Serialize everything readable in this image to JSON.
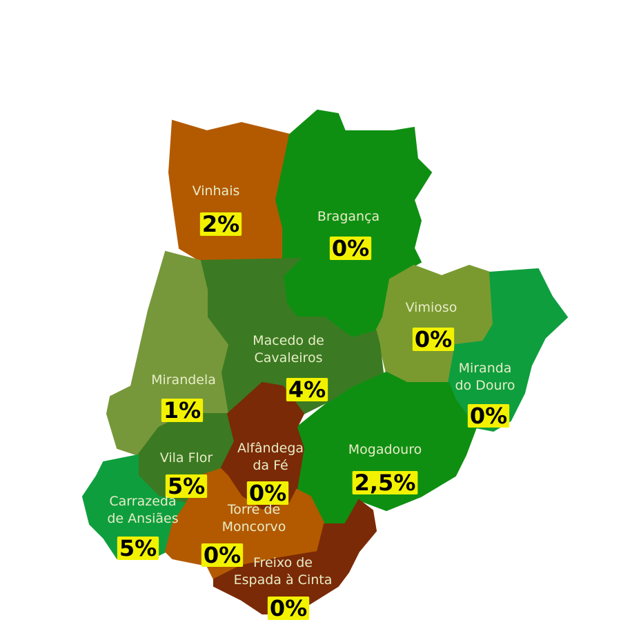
{
  "regions": [
    {
      "name": [
        "Vinhais"
      ],
      "value": "2%",
      "color": "#b35a00"
    },
    {
      "name": [
        "Bragança"
      ],
      "value": "0%",
      "color": "#0f8f12"
    },
    {
      "name": [
        "Vimioso"
      ],
      "value": "0%",
      "color": "#7a9a30"
    },
    {
      "name": [
        "Miranda",
        "do Douro"
      ],
      "value": "0%",
      "color": "#0e9e3e"
    },
    {
      "name": [
        "Mogadouro"
      ],
      "value": "2,5%",
      "color": "#0f8f12"
    },
    {
      "name": [
        "Macedo de",
        "Cavaleiros"
      ],
      "value": "4%",
      "color": "#3b7a22"
    },
    {
      "name": [
        "Mirandela"
      ],
      "value": "1%",
      "color": "#76983a"
    },
    {
      "name": [
        "Vila Flor"
      ],
      "value": "5%",
      "color": "#3b7a22"
    },
    {
      "name": [
        "Alfândega",
        "da Fé"
      ],
      "value": "0%",
      "color": "#7a2a06"
    },
    {
      "name": [
        "Carrazeda",
        "de Ansiães"
      ],
      "value": "5%",
      "color": "#0e9e3e"
    },
    {
      "name": [
        "Torre de",
        "Moncorvo"
      ],
      "value": "0%",
      "color": "#b35a00"
    },
    {
      "name": [
        "Freixo de",
        "Espada à Cinta"
      ],
      "value": "0%",
      "color": "#7a2a06"
    }
  ]
}
